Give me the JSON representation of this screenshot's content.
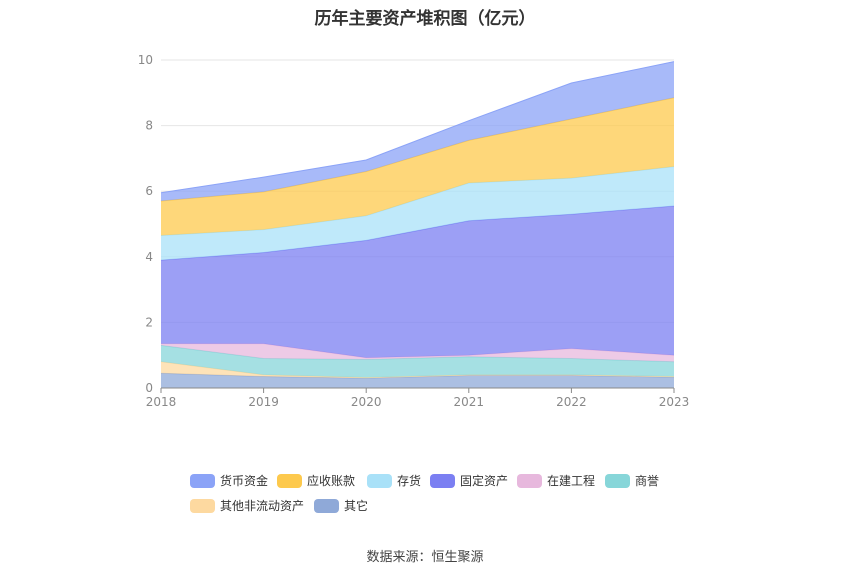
{
  "chart_data": {
    "type": "area",
    "stacked": true,
    "title": "历年主要资产堆积图（亿元）",
    "xlabel": "",
    "ylabel": "",
    "categories": [
      "2018",
      "2019",
      "2020",
      "2021",
      "2022",
      "2023"
    ],
    "ylim": [
      0,
      10
    ],
    "yticks": [
      "0",
      "2",
      "4",
      "6",
      "8",
      "10"
    ],
    "grid": true,
    "legend_position": "bottom",
    "series": [
      {
        "name": "其它",
        "color": "#8fa9d8",
        "values": [
          0.45,
          0.35,
          0.3,
          0.38,
          0.38,
          0.33
        ]
      },
      {
        "name": "其他非流动资产",
        "color": "#fdd9a0",
        "values": [
          0.35,
          0.05,
          0.02,
          0.02,
          0.02,
          0.02
        ]
      },
      {
        "name": "商誉",
        "color": "#87d6d9",
        "values": [
          0.5,
          0.5,
          0.55,
          0.55,
          0.5,
          0.45
        ]
      },
      {
        "name": "在建工程",
        "color": "#e7b8dd",
        "values": [
          0.05,
          0.45,
          0.05,
          0.05,
          0.3,
          0.2
        ]
      },
      {
        "name": "固定资产",
        "color": "#7b7ff2",
        "values": [
          2.55,
          2.78,
          3.58,
          4.1,
          4.1,
          4.55
        ]
      },
      {
        "name": "存货",
        "color": "#a9e1f8",
        "values": [
          0.75,
          0.7,
          0.75,
          1.15,
          1.1,
          1.2
        ]
      },
      {
        "name": "应收账款",
        "color": "#fdc94d",
        "values": [
          1.05,
          1.15,
          1.35,
          1.3,
          1.8,
          2.1
        ]
      },
      {
        "name": "货币资金",
        "color": "#8ba3f7",
        "values": [
          0.25,
          0.45,
          0.35,
          0.6,
          1.1,
          1.1
        ]
      }
    ]
  },
  "legend": {
    "items": [
      {
        "name": "货币资金",
        "color": "#8ba3f7"
      },
      {
        "name": "应收账款",
        "color": "#fdc94d"
      },
      {
        "name": "存货",
        "color": "#a9e1f8"
      },
      {
        "name": "固定资产",
        "color": "#7b7ff2"
      },
      {
        "name": "在建工程",
        "color": "#e7b8dd"
      },
      {
        "name": "商誉",
        "color": "#87d6d9"
      },
      {
        "name": "其他非流动资产",
        "color": "#fdd9a0"
      },
      {
        "name": "其它",
        "color": "#8fa9d8"
      }
    ]
  },
  "source": "数据来源：恒生聚源"
}
